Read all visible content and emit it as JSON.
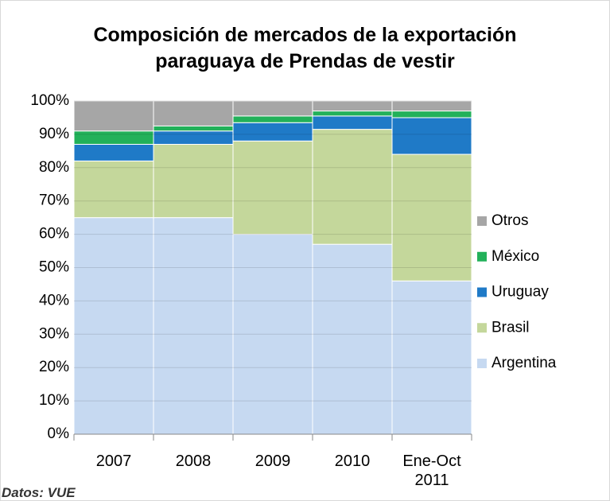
{
  "chart_data": {
    "type": "stacked_bar_100",
    "title": "Composición de mercados de la exportación paraguaya de Prendas de vestir",
    "source": "Datos: VUE",
    "categories": [
      "2007",
      "2008",
      "2009",
      "2010",
      "Ene-Oct 2011"
    ],
    "series": [
      {
        "name": "Argentina",
        "color": "#c6d9f1",
        "values": [
          65,
          65,
          60,
          57,
          46
        ]
      },
      {
        "name": "Brasil",
        "color": "#c4d79b",
        "values": [
          17,
          22,
          28,
          34.5,
          38
        ]
      },
      {
        "name": "Uruguay",
        "color": "#1f7ac7",
        "values": [
          5,
          4,
          5.5,
          4,
          11
        ]
      },
      {
        "name": "México",
        "color": "#22b15a",
        "values": [
          4,
          1.5,
          2,
          1.5,
          2
        ]
      },
      {
        "name": "Otros",
        "color": "#a6a6a6",
        "values": [
          9,
          7.5,
          4.5,
          3,
          3
        ]
      }
    ],
    "ylim": [
      0,
      100
    ],
    "yticks": [
      {
        "value": 0,
        "label": "0%"
      },
      {
        "value": 10,
        "label": "10%"
      },
      {
        "value": 20,
        "label": "20%"
      },
      {
        "value": 30,
        "label": "30%"
      },
      {
        "value": 40,
        "label": "40%"
      },
      {
        "value": 50,
        "label": "50%"
      },
      {
        "value": 60,
        "label": "60%"
      },
      {
        "value": 70,
        "label": "70%"
      },
      {
        "value": 80,
        "label": "80%"
      },
      {
        "value": 90,
        "label": "90%"
      },
      {
        "value": 100,
        "label": "100%"
      }
    ],
    "grid": true,
    "legend": "right"
  }
}
